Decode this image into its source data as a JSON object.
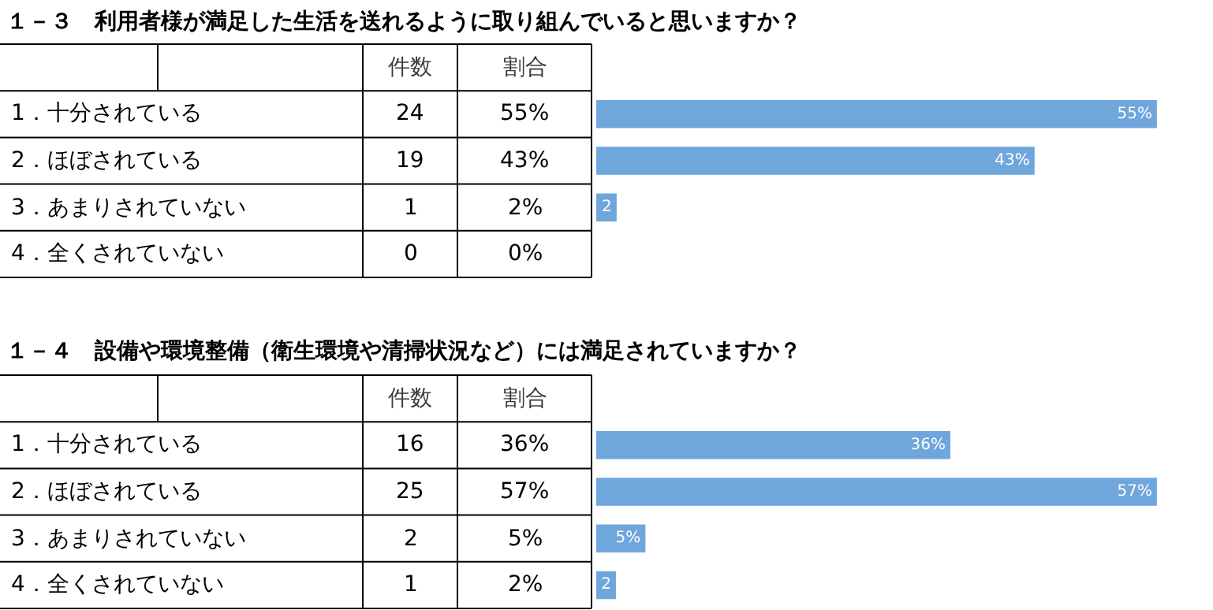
{
  "chart_data": [
    {
      "type": "bar",
      "orientation": "horizontal",
      "title": "１－３　利用者様が満足した生活を送れるように取り組んでいると思いますか？",
      "categories": [
        "1．十分されている",
        "2．ほぼされている",
        "3．あまりされていない",
        "4．全くされていない"
      ],
      "values": [
        55,
        43,
        2,
        0
      ],
      "color": "#6fa6dc",
      "value_labels": [
        "55%",
        "43%",
        "2",
        null
      ],
      "annotations": [
        "件数",
        "割合",
        "24",
        "19",
        "1",
        "0",
        "55%",
        "43%",
        "2%",
        "0%"
      ]
    },
    {
      "type": "bar",
      "orientation": "horizontal",
      "title": "１－４　設備や環境整備（衛生環境や清掃状況など）には満足されていますか？",
      "categories": [
        "1．十分されている",
        "2．ほぼされている",
        "3．あまりされていない",
        "4．全くされていない"
      ],
      "values": [
        36,
        57,
        5,
        2
      ],
      "color": "#6fa6dc",
      "value_labels": [
        "36%",
        "57%",
        "5%",
        "2"
      ],
      "annotations": [
        "件数",
        "割合",
        "16",
        "25",
        "2",
        "1",
        "36%",
        "57%",
        "5%",
        "2%"
      ]
    }
  ]
}
